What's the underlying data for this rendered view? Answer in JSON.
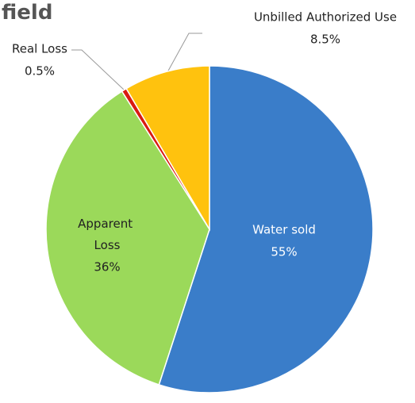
{
  "chart_data": {
    "type": "pie",
    "title": "field",
    "categories": [
      "Water sold",
      "Apparent Loss",
      "Real Loss",
      "Unbilled Authorized Use"
    ],
    "values": [
      55,
      36,
      0.5,
      8.5
    ],
    "value_labels": [
      "55%",
      "36%",
      "0.5%",
      "8.5%"
    ],
    "colors": [
      "#3a7dc9",
      "#9bd95a",
      "#d91a12",
      "#ffc20e"
    ]
  }
}
